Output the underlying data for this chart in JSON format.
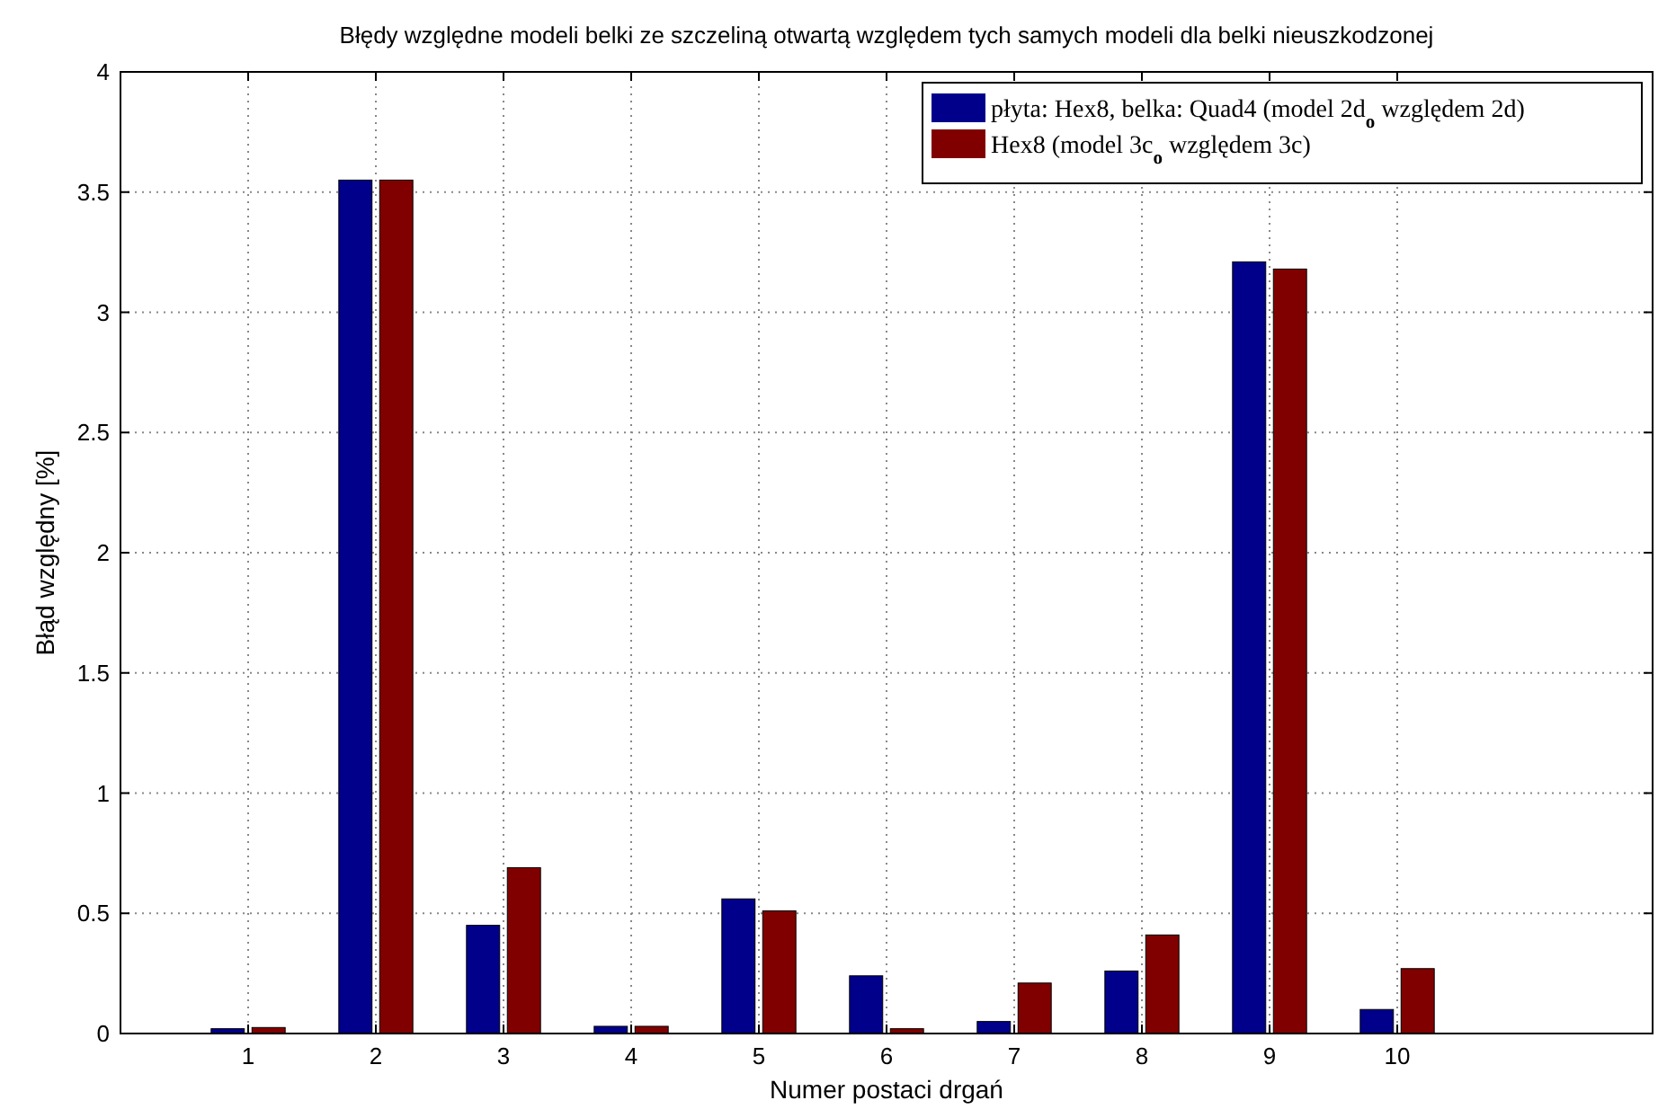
{
  "chart_data": {
    "type": "bar",
    "title": "Błędy względne modeli belki ze szczeliną otwartą względem tych samych modeli dla belki nieuszkodzonej",
    "xlabel": "Numer postaci drgań",
    "ylabel": "Błąd względny [%]",
    "x": [
      1,
      2,
      3,
      4,
      5,
      6,
      7,
      8,
      9,
      10
    ],
    "series": [
      {
        "name": "płyta: Hex8, belka: Quad4 (model 2d$_{o}$  względem 2d)",
        "color": "#00008b",
        "values": [
          0.02,
          3.55,
          0.45,
          0.03,
          0.56,
          0.24,
          0.05,
          0.26,
          3.21,
          0.1
        ]
      },
      {
        "name": "Hex8 (model 3c$_{o}$  względem 3c)",
        "color": "#800000",
        "values": [
          0.025,
          3.55,
          0.69,
          0.03,
          0.51,
          0.02,
          0.21,
          0.41,
          3.18,
          0.27
        ]
      }
    ],
    "xlim": [
      0,
      12
    ],
    "xticks": [
      1,
      2,
      3,
      4,
      5,
      6,
      7,
      8,
      9,
      10
    ],
    "ylim": [
      0,
      4
    ],
    "yticks": [
      0,
      0.5,
      1,
      1.5,
      2,
      2.5,
      3,
      3.5,
      4
    ],
    "grid": true,
    "legend": "top right"
  }
}
